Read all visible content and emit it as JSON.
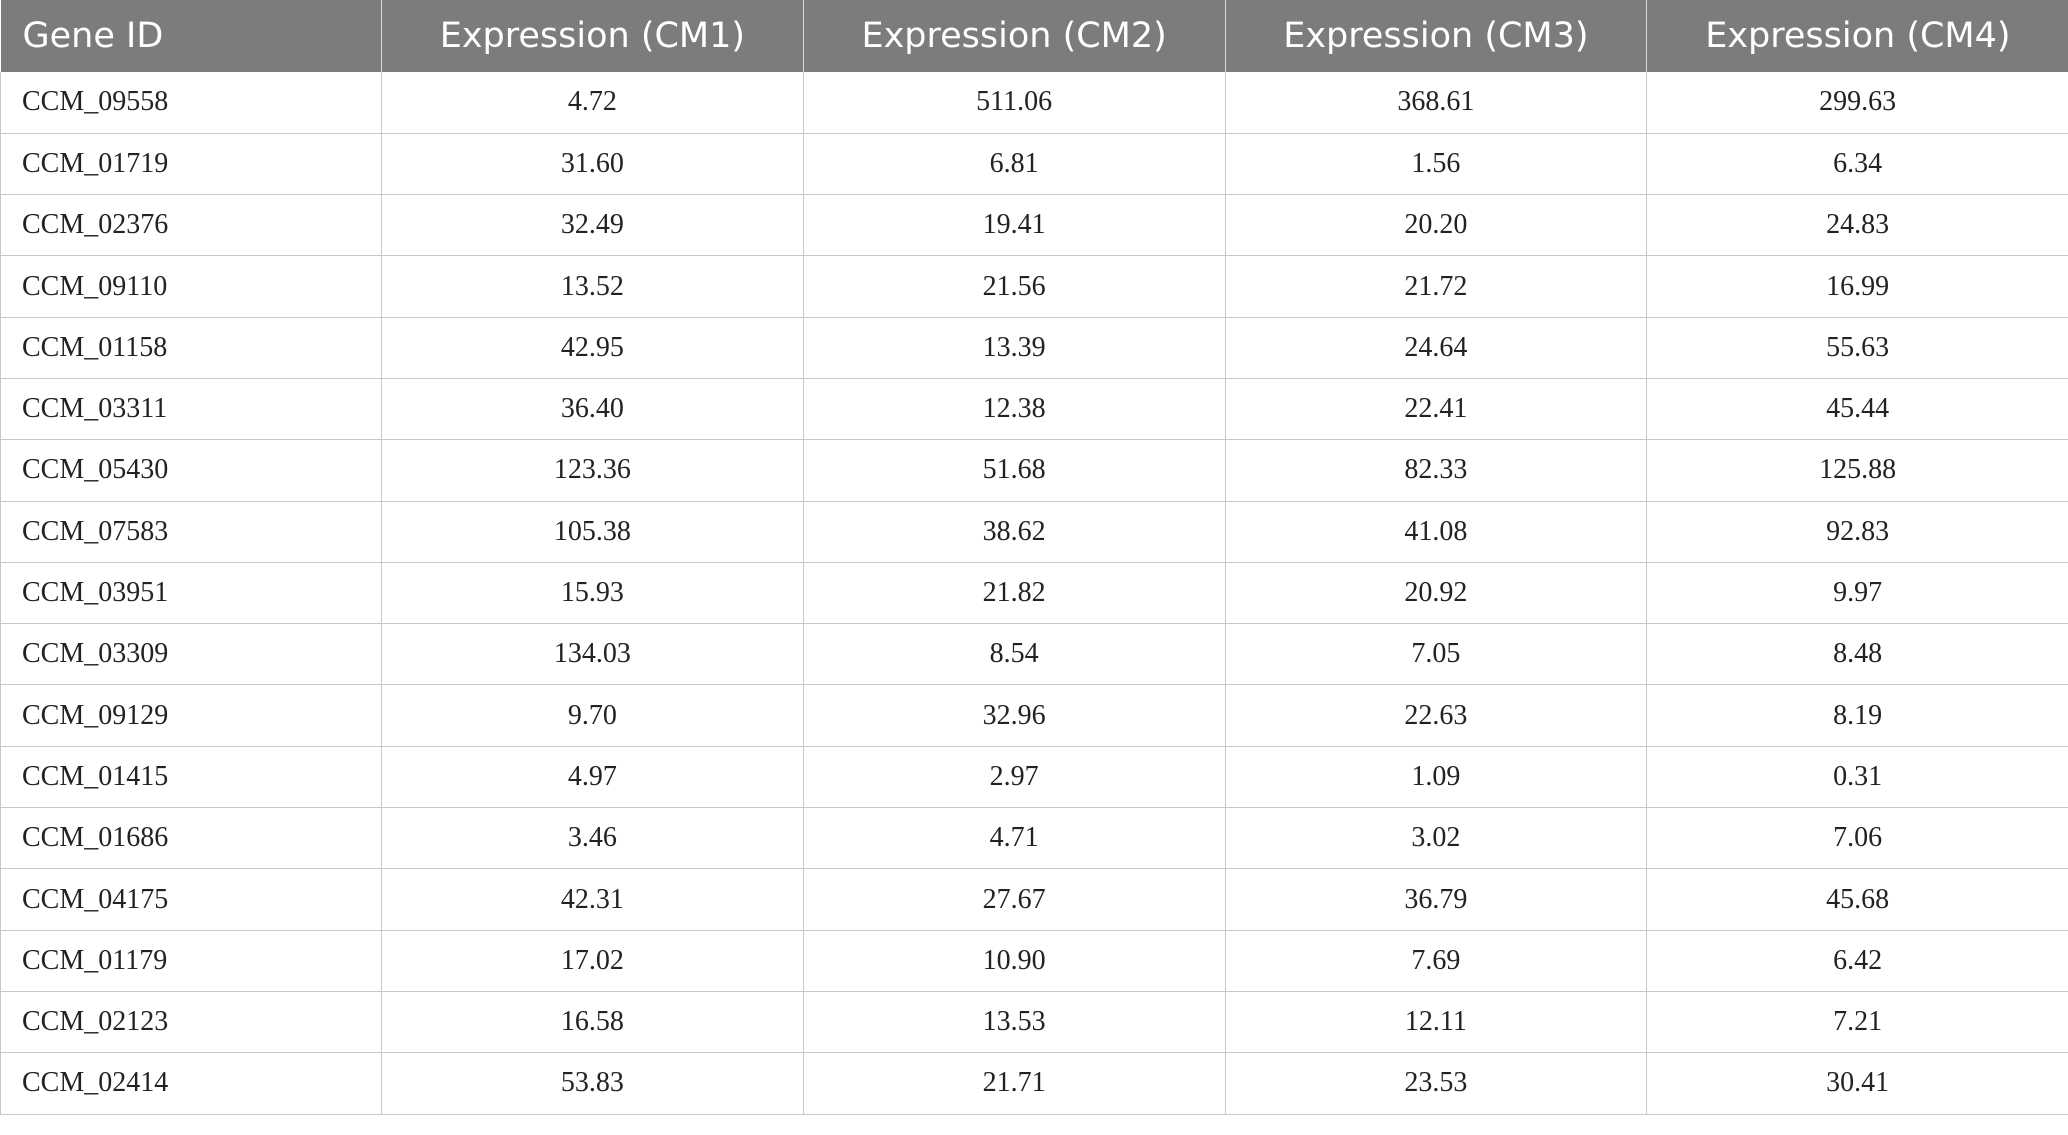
{
  "table": {
    "headers": [
      "Gene ID",
      "Expression (CM1)",
      "Expression (CM2)",
      "Expression (CM3)",
      "Expression (CM4)"
    ],
    "rows": [
      [
        "CCM_09558",
        "4.72",
        "511.06",
        "368.61",
        "299.63"
      ],
      [
        "CCM_01719",
        "31.60",
        "6.81",
        "1.56",
        "6.34"
      ],
      [
        "CCM_02376",
        "32.49",
        "19.41",
        "20.20",
        "24.83"
      ],
      [
        "CCM_09110",
        "13.52",
        "21.56",
        "21.72",
        "16.99"
      ],
      [
        "CCM_01158",
        "42.95",
        "13.39",
        "24.64",
        "55.63"
      ],
      [
        "CCM_03311",
        "36.40",
        "12.38",
        "22.41",
        "45.44"
      ],
      [
        "CCM_05430",
        "123.36",
        "51.68",
        "82.33",
        "125.88"
      ],
      [
        "CCM_07583",
        "105.38",
        "38.62",
        "41.08",
        "92.83"
      ],
      [
        "CCM_03951",
        "15.93",
        "21.82",
        "20.92",
        "9.97"
      ],
      [
        "CCM_03309",
        "134.03",
        "8.54",
        "7.05",
        "8.48"
      ],
      [
        "CCM_09129",
        "9.70",
        "32.96",
        "22.63",
        "8.19"
      ],
      [
        "CCM_01415",
        "4.97",
        "2.97",
        "1.09",
        "0.31"
      ],
      [
        "CCM_01686",
        "3.46",
        "4.71",
        "3.02",
        "7.06"
      ],
      [
        "CCM_04175",
        "42.31",
        "27.67",
        "36.79",
        "45.68"
      ],
      [
        "CCM_01179",
        "17.02",
        "10.90",
        "7.69",
        "6.42"
      ],
      [
        "CCM_02123",
        "16.58",
        "13.53",
        "12.11",
        "7.21"
      ],
      [
        "CCM_02414",
        "53.83",
        "21.71",
        "23.53",
        "30.41"
      ]
    ]
  },
  "colors": {
    "header_bg": "#7b7d7c",
    "header_text": "#ffffff",
    "grid_line": "#c8c8c8",
    "cell_text": "#222222"
  }
}
